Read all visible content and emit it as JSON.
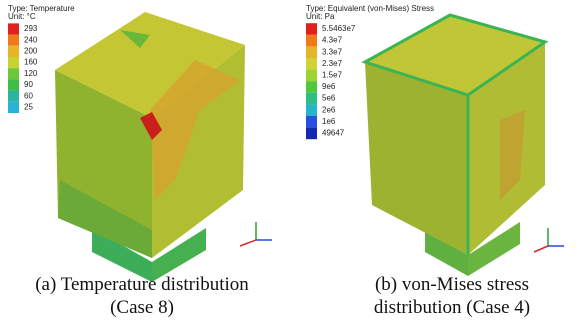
{
  "panels": [
    {
      "legend": {
        "type": "Type: Temperature",
        "unit": "Unit: °C",
        "labels": [
          "293",
          "240",
          "200",
          "160",
          "120",
          "90",
          "60",
          "25"
        ],
        "colors": [
          "#e0201c",
          "#f07a1a",
          "#e6b428",
          "#c8d232",
          "#6cc83a",
          "#3cbe46",
          "#2cb4a0",
          "#28b4d8"
        ]
      },
      "caption": [
        "(a) Temperature distribution",
        "(Case 8)"
      ]
    },
    {
      "legend": {
        "type": "Type: Equivalent (von-Mises) Stress",
        "unit": "Unit: Pa",
        "labels": [
          "5.5463e7",
          "4.3e7",
          "3.3e7",
          "2.3e7",
          "1.5e7",
          "9e6",
          "5e6",
          "2e6",
          "1e6",
          "49647"
        ],
        "colors": [
          "#e0201c",
          "#f07a1a",
          "#e6b428",
          "#d2d232",
          "#a0d232",
          "#50c83c",
          "#2cbe82",
          "#28b4c8",
          "#2850e0",
          "#1428b4"
        ]
      },
      "caption": [
        "(b) von-Mises stress",
        "distribution (Case 4)"
      ]
    }
  ]
}
